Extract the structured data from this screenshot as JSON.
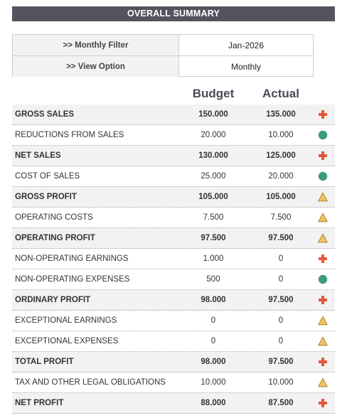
{
  "title": "OVERALL SUMMARY",
  "filters": [
    {
      "label": ">> Monthly Filter",
      "value": "Jan-2026"
    },
    {
      "label": ">> View Option",
      "value": "Monthly"
    }
  ],
  "columns": {
    "budget": "Budget",
    "actual": "Actual"
  },
  "rows": [
    {
      "label": "GROSS SALES",
      "budget": "150.000",
      "actual": "135.000",
      "bold": true,
      "status": "red-cross-icon"
    },
    {
      "label": "REDUCTIONS FROM SALES",
      "budget": "20.000",
      "actual": "10.000",
      "bold": false,
      "status": "green-circle-icon"
    },
    {
      "label": "NET SALES",
      "budget": "130.000",
      "actual": "125.000",
      "bold": true,
      "status": "red-cross-icon"
    },
    {
      "label": "COST OF SALES",
      "budget": "25.000",
      "actual": "20.000",
      "bold": false,
      "status": "green-circle-icon"
    },
    {
      "label": "GROSS PROFIT",
      "budget": "105.000",
      "actual": "105.000",
      "bold": true,
      "status": "yellow-triangle-icon"
    },
    {
      "label": "OPERATING COSTS",
      "budget": "7.500",
      "actual": "7.500",
      "bold": false,
      "status": "yellow-triangle-icon"
    },
    {
      "label": "OPERATING PROFIT",
      "budget": "97.500",
      "actual": "97.500",
      "bold": true,
      "status": "yellow-triangle-icon"
    },
    {
      "label": "NON-OPERATING EARNINGS",
      "budget": "1.000",
      "actual": "0",
      "bold": false,
      "status": "red-cross-icon"
    },
    {
      "label": "NON-OPERATING EXPENSES",
      "budget": "500",
      "actual": "0",
      "bold": false,
      "status": "green-circle-icon"
    },
    {
      "label": "ORDINARY PROFIT",
      "budget": "98.000",
      "actual": "97.500",
      "bold": true,
      "status": "red-cross-icon"
    },
    {
      "label": "EXCEPTIONAL EARNINGS",
      "budget": "0",
      "actual": "0",
      "bold": false,
      "status": "yellow-triangle-icon"
    },
    {
      "label": "EXCEPTIONAL EXPENSES",
      "budget": "0",
      "actual": "0",
      "bold": false,
      "status": "yellow-triangle-icon"
    },
    {
      "label": "TOTAL PROFIT",
      "budget": "98.000",
      "actual": "97.500",
      "bold": true,
      "status": "red-cross-icon"
    },
    {
      "label": "TAX AND OTHER LEGAL OBLIGATIONS",
      "budget": "10.000",
      "actual": "10.000",
      "bold": false,
      "status": "yellow-triangle-icon"
    },
    {
      "label": "NET PROFIT",
      "budget": "88.000",
      "actual": "87.500",
      "bold": true,
      "status": "red-cross-icon"
    }
  ],
  "colors": {
    "header_bg": "#56535f",
    "red": "#e2583b",
    "green": "#3d9c7a",
    "yellow": "#f0c36a",
    "yellow_stroke": "#b48a2c"
  }
}
